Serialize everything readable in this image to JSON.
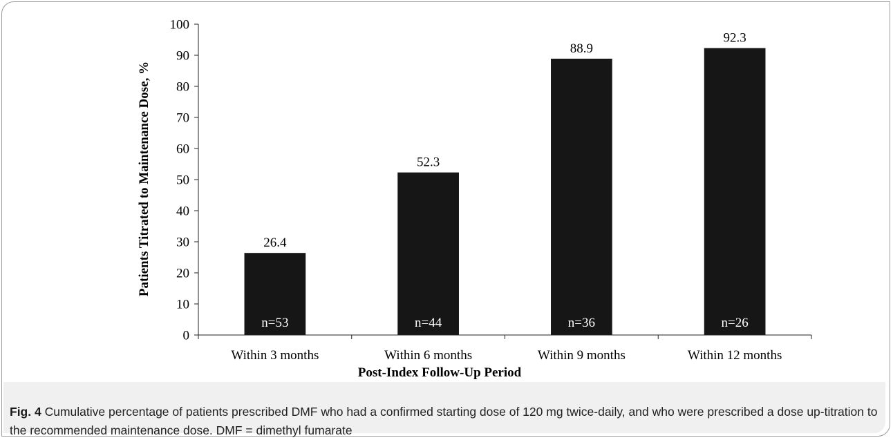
{
  "colors": {
    "bar": "#161616",
    "bar_label_inside": "#ffffff",
    "axis": "#222222",
    "text": "#000000"
  },
  "chart_data": {
    "type": "bar",
    "categories": [
      "Within 3 months",
      "Within 6 months",
      "Within 9 months",
      "Within 12 months"
    ],
    "values": [
      26.4,
      52.3,
      88.9,
      92.3
    ],
    "value_labels": [
      "26.4",
      "52.3",
      "88.9",
      "92.3"
    ],
    "n_labels": [
      "n=53",
      "n=44",
      "n=36",
      "n=26"
    ],
    "title": "",
    "xlabel": "Post-Index Follow-Up Period",
    "ylabel": "Patients Titrated to Maintenance Dose, %",
    "ylim": [
      0,
      100
    ],
    "yticks": [
      0,
      10,
      20,
      30,
      40,
      50,
      60,
      70,
      80,
      90,
      100
    ],
    "grid": false,
    "legend": "none"
  },
  "caption": {
    "label": "Fig. 4",
    "text": "Cumulative percentage of patients prescribed DMF who had a confirmed starting dose of 120 mg twice-daily, and who were prescribed a dose up-titration to the recommended maintenance dose. DMF = dimethyl fumarate"
  }
}
